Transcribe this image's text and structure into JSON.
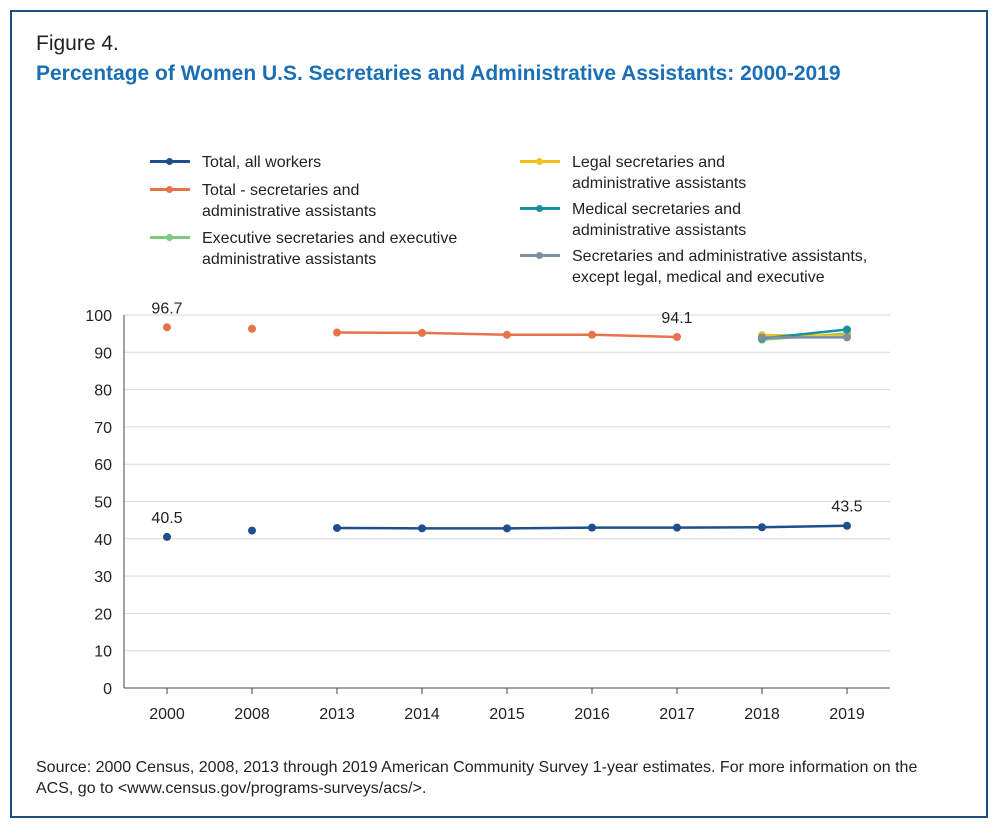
{
  "figure_label": "Figure 4.",
  "title": "Percentage of Women U.S. Secretaries and Administrative Assistants: 2000-2019",
  "source": "Source: 2000 Census, 2008, 2013 through 2019 American Community Survey 1-year estimates. For more information on the ACS, go to <www.census.gov/programs-surveys/acs/>.",
  "chart_data": {
    "type": "line",
    "title": "Percentage of Women U.S. Secretaries and Administrative Assistants: 2000-2019",
    "xlabel": "",
    "ylabel": "",
    "categories": [
      "2000",
      "2008",
      "2013",
      "2014",
      "2015",
      "2016",
      "2017",
      "2018",
      "2019"
    ],
    "y_ticks": [
      "0",
      "10",
      "20",
      "30",
      "40",
      "50",
      "60",
      "70",
      "80",
      "90",
      "100"
    ],
    "ylim": [
      0,
      100
    ],
    "grid": "horizontal",
    "legend_position": "top",
    "series": [
      {
        "name": "Total, all workers",
        "color": "#1f4e8c",
        "values": [
          40.5,
          42.2,
          42.9,
          42.8,
          42.8,
          43.0,
          43.0,
          43.1,
          43.5
        ],
        "connected_from_index": 2
      },
      {
        "name": "Total - secretaries and administrative assistants",
        "color": "#e8734a",
        "values": [
          96.7,
          96.3,
          95.3,
          95.2,
          94.7,
          94.7,
          94.1,
          null,
          null
        ],
        "connected_from_index": 2
      },
      {
        "name": "Executive secretaries and executive administrative assistants",
        "color": "#7dc97d",
        "values": [
          null,
          null,
          null,
          null,
          null,
          null,
          null,
          93.4,
          95.0
        ],
        "connected_from_index": 7
      },
      {
        "name": "Legal secretaries and administrative assistants",
        "color": "#f2c21b",
        "values": [
          null,
          null,
          null,
          null,
          null,
          null,
          null,
          94.6,
          94.4
        ],
        "connected_from_index": 7
      },
      {
        "name": "Medical secretaries and administrative assistants",
        "color": "#1b8f9c",
        "values": [
          null,
          null,
          null,
          null,
          null,
          null,
          null,
          93.7,
          96.1
        ],
        "connected_from_index": 7
      },
      {
        "name": "Secretaries and administrative assistants, except legal, medical and executive",
        "color": "#7f8fa3",
        "values": [
          null,
          null,
          null,
          null,
          null,
          null,
          null,
          94.0,
          94.0
        ],
        "connected_from_index": 7
      }
    ],
    "annotations": [
      {
        "text": "96.7",
        "series": 1,
        "index": 0
      },
      {
        "text": "94.1",
        "series": 1,
        "index": 6
      },
      {
        "text": "40.5",
        "series": 0,
        "index": 0
      },
      {
        "text": "43.5",
        "series": 0,
        "index": 8
      }
    ]
  }
}
